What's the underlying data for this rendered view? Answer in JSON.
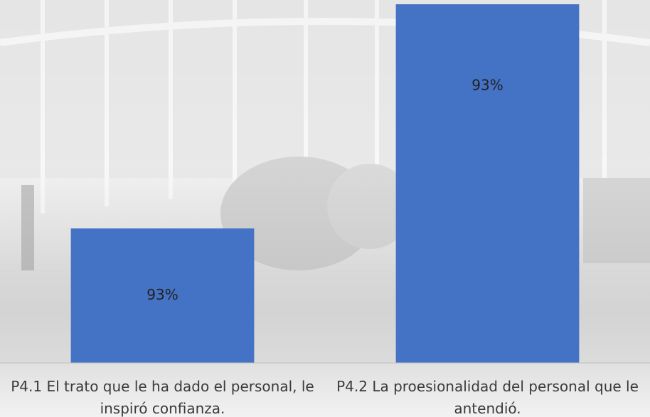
{
  "chart_data": {
    "type": "bar",
    "categories": [
      "P4.1 El trato que le ha dado el personal, le inspiró confianza.",
      "P4.2 La proesionalidad del personal que le antendió."
    ],
    "values": [
      92.8,
      93.3
    ],
    "value_labels": [
      "93%",
      "93%"
    ],
    "color": "#4472c4",
    "ylim": [
      92.5,
      93.3
    ]
  }
}
